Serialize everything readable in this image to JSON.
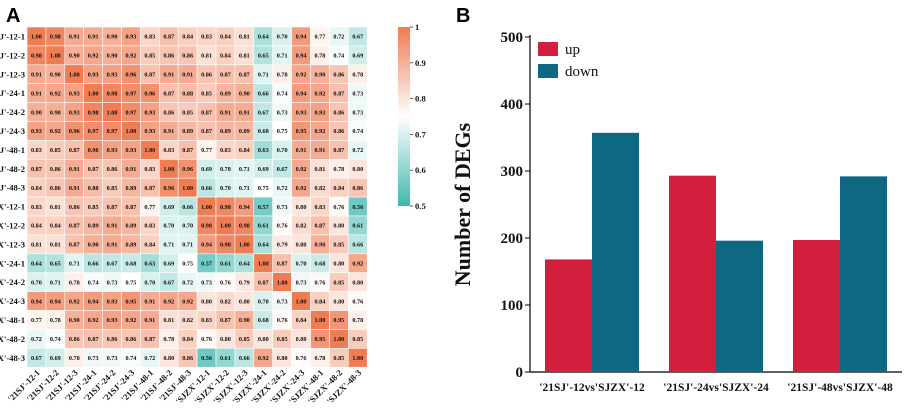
{
  "panels": {
    "a_label": "A",
    "b_label": "B"
  },
  "colors": {
    "low": "#3fb8ad",
    "mid": "#ffffff",
    "high": "#f07c54",
    "up": "#d11f3d",
    "down": "#0f6882"
  },
  "chart_data": [
    {
      "type": "heatmap",
      "title": "",
      "samples": [
        "'21SJ'-12-1",
        "'21SJ'-12-2",
        "'21SJ'-12-3",
        "'21SJ'-24-1",
        "'21SJ'-24-2",
        "'21SJ'-24-3",
        "'21SJ'-48-1",
        "'21SJ'-48-2",
        "'21SJ'-48-3",
        "'SJZX'-12-1",
        "'SJZX'-12-2",
        "'SJZX'-12-3",
        "'SJZX'-24-1",
        "'SJZX'-24-2",
        "'SJZX'-24-3",
        "'SJZX'-48-1",
        "'SJZX'-48-2",
        "'SJZX'-48-3"
      ],
      "values": [
        [
          1.0,
          0.98,
          0.91,
          0.91,
          0.9,
          0.93,
          0.83,
          0.87,
          0.84,
          0.83,
          0.84,
          0.81,
          0.64,
          0.7,
          0.94,
          0.77,
          0.72,
          0.67
        ],
        [
          0.98,
          1.0,
          0.9,
          0.92,
          0.9,
          0.92,
          0.85,
          0.86,
          0.86,
          0.81,
          0.84,
          0.81,
          0.65,
          0.71,
          0.94,
          0.78,
          0.74,
          0.69
        ],
        [
          0.91,
          0.9,
          1.0,
          0.93,
          0.93,
          0.96,
          0.87,
          0.91,
          0.91,
          0.86,
          0.87,
          0.87,
          0.71,
          0.78,
          0.92,
          0.9,
          0.86,
          0.78
        ],
        [
          0.91,
          0.92,
          0.93,
          1.0,
          0.98,
          0.97,
          0.96,
          0.87,
          0.88,
          0.85,
          0.89,
          0.9,
          0.66,
          0.74,
          0.94,
          0.92,
          0.87,
          0.73
        ],
        [
          0.9,
          0.9,
          0.93,
          0.98,
          1.0,
          0.97,
          0.93,
          0.86,
          0.85,
          0.87,
          0.91,
          0.91,
          0.67,
          0.73,
          0.93,
          0.93,
          0.86,
          0.73
        ],
        [
          0.93,
          0.92,
          0.96,
          0.97,
          0.97,
          1.0,
          0.93,
          0.91,
          0.89,
          0.87,
          0.89,
          0.89,
          0.68,
          0.75,
          0.95,
          0.92,
          0.86,
          0.74
        ],
        [
          0.83,
          0.85,
          0.87,
          0.96,
          0.93,
          0.93,
          1.0,
          0.83,
          0.87,
          0.77,
          0.83,
          0.84,
          0.63,
          0.7,
          0.91,
          0.91,
          0.87,
          0.72
        ],
        [
          0.87,
          0.86,
          0.91,
          0.87,
          0.86,
          0.91,
          0.83,
          1.0,
          0.96,
          0.69,
          0.7,
          0.71,
          0.69,
          0.67,
          0.92,
          0.81,
          0.78,
          0.8
        ],
        [
          0.84,
          0.86,
          0.91,
          0.88,
          0.85,
          0.89,
          0.87,
          0.96,
          1.0,
          0.66,
          0.7,
          0.71,
          0.75,
          0.72,
          0.92,
          0.82,
          0.84,
          0.86
        ],
        [
          0.83,
          0.81,
          0.86,
          0.85,
          0.87,
          0.87,
          0.77,
          0.69,
          0.66,
          1.0,
          0.98,
          0.94,
          0.57,
          0.73,
          0.8,
          0.83,
          0.76,
          0.56
        ],
        [
          0.84,
          0.84,
          0.87,
          0.89,
          0.91,
          0.89,
          0.83,
          0.7,
          0.7,
          0.98,
          1.0,
          0.98,
          0.61,
          0.76,
          0.82,
          0.87,
          0.8,
          0.61
        ],
        [
          0.81,
          0.81,
          0.87,
          0.9,
          0.91,
          0.89,
          0.84,
          0.71,
          0.71,
          0.94,
          0.98,
          1.0,
          0.64,
          0.79,
          0.8,
          0.9,
          0.85,
          0.66
        ],
        [
          0.64,
          0.65,
          0.71,
          0.66,
          0.67,
          0.68,
          0.63,
          0.69,
          0.75,
          0.57,
          0.61,
          0.64,
          1.0,
          0.87,
          0.7,
          0.68,
          0.8,
          0.92
        ],
        [
          0.7,
          0.71,
          0.78,
          0.74,
          0.73,
          0.75,
          0.7,
          0.67,
          0.72,
          0.73,
          0.76,
          0.79,
          0.87,
          1.0,
          0.73,
          0.76,
          0.85,
          0.8
        ],
        [
          0.94,
          0.94,
          0.92,
          0.94,
          0.93,
          0.95,
          0.91,
          0.92,
          0.92,
          0.8,
          0.82,
          0.8,
          0.7,
          0.73,
          1.0,
          0.84,
          0.8,
          0.76
        ],
        [
          0.77,
          0.78,
          0.9,
          0.92,
          0.93,
          0.92,
          0.91,
          0.81,
          0.82,
          0.83,
          0.87,
          0.9,
          0.68,
          0.76,
          0.84,
          1.0,
          0.95,
          0.78
        ],
        [
          0.72,
          0.74,
          0.86,
          0.87,
          0.86,
          0.86,
          0.87,
          0.78,
          0.84,
          0.76,
          0.8,
          0.85,
          0.8,
          0.85,
          0.8,
          0.95,
          1.0,
          0.85
        ],
        [
          0.67,
          0.69,
          0.78,
          0.73,
          0.73,
          0.74,
          0.72,
          0.8,
          0.86,
          0.56,
          0.61,
          0.66,
          0.92,
          0.8,
          0.76,
          0.78,
          0.85,
          1.0
        ]
      ],
      "colorbar": {
        "min": 0.5,
        "max": 1,
        "ticks": [
          "0.5",
          "0.6",
          "0.7",
          "0.8",
          "0.9",
          "1"
        ]
      }
    },
    {
      "type": "bar",
      "title": "",
      "categories": [
        "'21SJ'-12vs'SJZX'-12",
        "'21SJ'-24vs'SJZX'-24",
        "'21SJ'-48vs'SJZX'-48"
      ],
      "series": [
        {
          "name": "up",
          "values": [
            168,
            293,
            197
          ]
        },
        {
          "name": "down",
          "values": [
            357,
            196,
            292
          ]
        }
      ],
      "xlabel": "",
      "ylabel": "Number of DEGs",
      "ylim": [
        0,
        500
      ],
      "yticks": [
        "0",
        "100",
        "200",
        "300",
        "400",
        "500"
      ]
    }
  ]
}
